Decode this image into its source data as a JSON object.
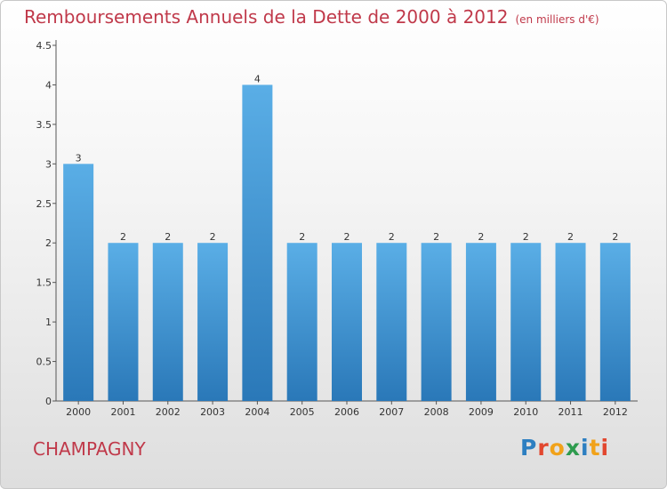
{
  "title": {
    "main": "Remboursements Annuels de la Dette de 2000 à 2012",
    "unit": "(en milliers d'€)"
  },
  "commune": "CHAMPAGNY",
  "logo": {
    "text": "Proxiti",
    "letter_colors": [
      "#2d7fc1",
      "#e2472f",
      "#f1a21a",
      "#2e9b4e",
      "#2d7fc1",
      "#f1a21a",
      "#e2472f"
    ]
  },
  "chart_data": {
    "type": "bar",
    "categories": [
      "2000",
      "2001",
      "2002",
      "2003",
      "2004",
      "2005",
      "2006",
      "2007",
      "2008",
      "2009",
      "2010",
      "2011",
      "2012"
    ],
    "values": [
      3,
      2,
      2,
      2,
      4,
      2,
      2,
      2,
      2,
      2,
      2,
      2,
      2
    ],
    "data_labels": [
      "3",
      "2",
      "2",
      "2",
      "4",
      "2",
      "2",
      "2",
      "2",
      "2",
      "2",
      "2",
      "2"
    ],
    "yticks": [
      0,
      0.5,
      1,
      1.5,
      2,
      2.5,
      3,
      3.5,
      4,
      4.5
    ],
    "ytick_labels": [
      "0",
      "0.5",
      "1",
      "1.5",
      "2",
      "2.5",
      "3",
      "3.5",
      "4",
      "4.5"
    ],
    "ylim": [
      0,
      4.5
    ],
    "xlabel": "",
    "ylabel": "",
    "grid": false,
    "legend": "none",
    "colors": {
      "bar_top": "#5aaee6",
      "bar_bottom": "#2a78b8",
      "axis": "#555555",
      "text": "#333333"
    }
  }
}
